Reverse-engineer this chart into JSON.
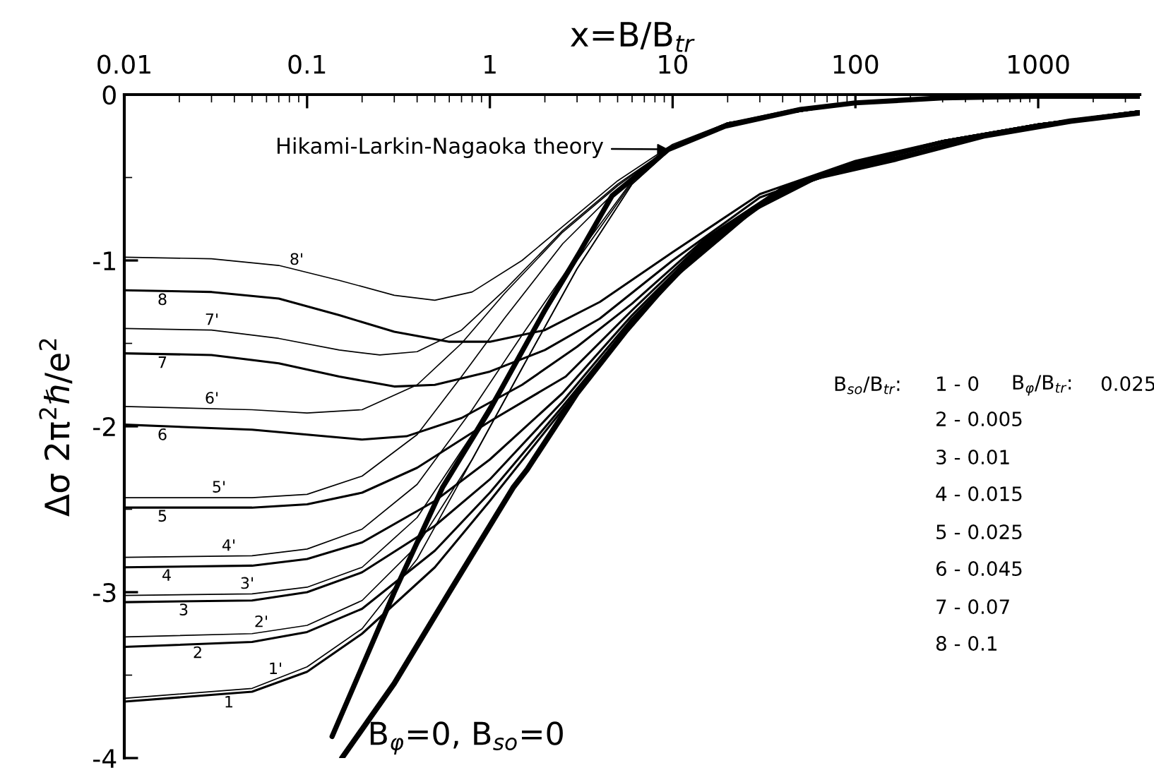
{
  "chart_data": {
    "type": "line",
    "xlabel": "x=B/B$_{tr}$",
    "ylabel": "Δσ 2π$^{2}$ℏ/e$^{2}$",
    "log": "x",
    "grid": false,
    "legend": false,
    "marker": "none",
    "line_style": "solid",
    "xlim": [
      0.01,
      3600
    ],
    "xticks": [
      0.01,
      0.1,
      1,
      10,
      100,
      1000
    ],
    "ylim": [
      -4,
      0
    ],
    "yticks": [
      -4,
      -3,
      -2,
      -1,
      0
    ],
    "series": [
      {
        "color": "#000000",
        "x": [
          0.137,
          0.3,
          0.55,
          1,
          2,
          3.1,
          4.66,
          9.5,
          19.4,
          50,
          100,
          300,
          1000,
          3600
        ],
        "values": [
          -3.87,
          -3.0,
          -2.37,
          -1.9,
          -1.3,
          -0.95,
          -0.61,
          -0.33,
          -0.19,
          -0.09,
          -0.05,
          -0.02,
          -0.01,
          -0.01
        ]
      },
      {
        "name": "B$_{φ}$=0, B$_{so}$=0",
        "color": "#000000",
        "x": [
          0.155,
          0.3,
          0.6,
          1.34,
          1.6,
          3,
          5.6,
          10,
          27.6,
          60,
          164,
          500,
          1500,
          3600
        ],
        "values": [
          -4,
          -3.55,
          -3.0,
          -2.37,
          -2.26,
          -1.8,
          -1.42,
          -1.1,
          -0.69,
          -0.5,
          -0.39,
          -0.25,
          -0.16,
          -0.11
        ]
      },
      {
        "name": "8'",
        "color": "#000000",
        "x": [
          0.01,
          0.03,
          0.07,
          0.15,
          0.3,
          0.5,
          0.8,
          1.5,
          2.6,
          5,
          10,
          20,
          50,
          100,
          200
        ],
        "values": [
          -0.98,
          -0.99,
          -1.03,
          -1.12,
          -1.21,
          -1.24,
          -1.19,
          -1.0,
          -0.78,
          -0.52,
          -0.3,
          -0.17,
          -0.08,
          -0.05,
          -0.03
        ]
      },
      {
        "name": "8",
        "color": "#000000",
        "x": [
          0.01,
          0.03,
          0.07,
          0.15,
          0.3,
          0.6,
          1,
          2,
          4,
          10,
          30,
          100,
          300,
          1000,
          3600
        ],
        "values": [
          -1.18,
          -1.19,
          -1.23,
          -1.33,
          -1.43,
          -1.49,
          -1.49,
          -1.42,
          -1.25,
          -0.95,
          -0.6,
          -0.4,
          -0.28,
          -0.18,
          -0.1
        ]
      },
      {
        "name": "7'",
        "color": "#000000",
        "x": [
          0.01,
          0.03,
          0.07,
          0.15,
          0.25,
          0.4,
          0.7,
          1.2,
          2.5,
          5,
          10,
          20,
          100,
          200
        ],
        "values": [
          -1.41,
          -1.42,
          -1.47,
          -1.54,
          -1.57,
          -1.55,
          -1.42,
          -1.18,
          -0.82,
          -0.54,
          -0.31,
          -0.17,
          -0.05,
          -0.03
        ]
      },
      {
        "name": "7",
        "color": "#000000",
        "x": [
          0.01,
          0.03,
          0.07,
          0.15,
          0.3,
          0.5,
          1,
          2,
          4,
          10,
          30,
          100,
          300,
          1000,
          3600
        ],
        "values": [
          -1.56,
          -1.57,
          -1.62,
          -1.7,
          -1.76,
          -1.75,
          -1.67,
          -1.54,
          -1.35,
          -1.0,
          -0.62,
          -0.41,
          -0.28,
          -0.18,
          -0.1
        ]
      },
      {
        "name": "6'",
        "color": "#000000",
        "x": [
          0.01,
          0.05,
          0.1,
          0.2,
          0.4,
          0.7,
          1.2,
          2.5,
          5,
          10,
          20,
          100,
          200
        ],
        "values": [
          -1.88,
          -1.9,
          -1.92,
          -1.9,
          -1.75,
          -1.5,
          -1.2,
          -0.83,
          -0.55,
          -0.31,
          -0.17,
          -0.05,
          -0.03
        ]
      },
      {
        "name": "6",
        "color": "#000000",
        "x": [
          0.01,
          0.05,
          0.1,
          0.2,
          0.35,
          0.7,
          1.5,
          3,
          6,
          15,
          40,
          100,
          300,
          1000,
          3600
        ],
        "values": [
          -1.99,
          -2.02,
          -2.05,
          -2.08,
          -2.06,
          -1.95,
          -1.75,
          -1.52,
          -1.26,
          -0.87,
          -0.56,
          -0.41,
          -0.28,
          -0.18,
          -0.1
        ]
      },
      {
        "name": "5'",
        "color": "#000000",
        "x": [
          0.01,
          0.05,
          0.1,
          0.2,
          0.4,
          0.7,
          1.2,
          2.5,
          5,
          10,
          20,
          100,
          200
        ],
        "values": [
          -2.43,
          -2.43,
          -2.41,
          -2.3,
          -2.05,
          -1.7,
          -1.35,
          -0.9,
          -0.57,
          -0.32,
          -0.17,
          -0.05,
          -0.03
        ]
      },
      {
        "name": "5",
        "color": "#000000",
        "x": [
          0.01,
          0.05,
          0.1,
          0.2,
          0.4,
          1,
          2.6,
          6,
          15,
          40,
          100,
          300,
          1000,
          3600
        ],
        "values": [
          -2.49,
          -2.49,
          -2.47,
          -2.4,
          -2.25,
          -1.97,
          -1.7,
          -1.3,
          -0.88,
          -0.56,
          -0.42,
          -0.28,
          -0.18,
          -0.1
        ]
      },
      {
        "name": "4'",
        "color": "#000000",
        "x": [
          0.01,
          0.05,
          0.1,
          0.2,
          0.4,
          0.8,
          1.5,
          3,
          6,
          10,
          20,
          100,
          200
        ],
        "values": [
          -2.79,
          -2.78,
          -2.74,
          -2.62,
          -2.35,
          -1.9,
          -1.45,
          -0.97,
          -0.52,
          -0.32,
          -0.17,
          -0.05,
          -0.03
        ]
      },
      {
        "name": "4",
        "color": "#000000",
        "x": [
          0.01,
          0.05,
          0.1,
          0.2,
          0.5,
          1,
          2.5,
          6,
          15,
          40,
          100,
          300,
          1000,
          3600
        ],
        "values": [
          -2.85,
          -2.84,
          -2.8,
          -2.7,
          -2.45,
          -2.2,
          -1.8,
          -1.33,
          -0.89,
          -0.57,
          -0.42,
          -0.28,
          -0.18,
          -0.1
        ]
      },
      {
        "name": "3'",
        "color": "#000000",
        "x": [
          0.01,
          0.05,
          0.1,
          0.2,
          0.4,
          0.8,
          1.5,
          3,
          6,
          10,
          20,
          100,
          200
        ],
        "values": [
          -3.02,
          -3.01,
          -2.97,
          -2.85,
          -2.55,
          -2.05,
          -1.55,
          -1.0,
          -0.53,
          -0.32,
          -0.17,
          -0.05,
          -0.03
        ]
      },
      {
        "name": "3",
        "color": "#000000",
        "x": [
          0.01,
          0.05,
          0.1,
          0.2,
          0.5,
          1,
          2.5,
          6,
          15,
          40,
          100,
          300,
          1000,
          3600
        ],
        "values": [
          -3.06,
          -3.05,
          -3.0,
          -2.88,
          -2.6,
          -2.32,
          -1.85,
          -1.35,
          -0.9,
          -0.57,
          -0.42,
          -0.29,
          -0.18,
          -0.1
        ]
      },
      {
        "name": "2'",
        "color": "#000000",
        "x": [
          0.01,
          0.05,
          0.1,
          0.2,
          0.4,
          0.8,
          1.5,
          3,
          6,
          10,
          20,
          100,
          200
        ],
        "values": [
          -3.27,
          -3.25,
          -3.2,
          -3.05,
          -2.72,
          -2.2,
          -1.65,
          -1.05,
          -0.54,
          -0.32,
          -0.17,
          -0.05,
          -0.03
        ]
      },
      {
        "name": "2",
        "color": "#000000",
        "x": [
          0.01,
          0.05,
          0.1,
          0.2,
          0.5,
          1,
          2.5,
          6,
          15,
          40,
          100,
          300,
          1000,
          3600
        ],
        "values": [
          -3.33,
          -3.3,
          -3.24,
          -3.1,
          -2.75,
          -2.4,
          -1.88,
          -1.37,
          -0.91,
          -0.58,
          -0.43,
          -0.29,
          -0.18,
          -0.1
        ]
      },
      {
        "name": "1'",
        "color": "#000000",
        "x": [
          0.01,
          0.05,
          0.1,
          0.2,
          0.4,
          0.8,
          1.5,
          3,
          6,
          10,
          20,
          100,
          200
        ],
        "values": [
          -3.64,
          -3.58,
          -3.45,
          -3.22,
          -2.8,
          -2.2,
          -1.65,
          -1.05,
          -0.54,
          -0.32,
          -0.17,
          -0.05,
          -0.03
        ]
      },
      {
        "name": "1",
        "color": "#000000",
        "x": [
          0.01,
          0.05,
          0.1,
          0.2,
          0.5,
          1,
          2.5,
          6,
          15,
          40,
          100,
          300,
          1000,
          3600
        ],
        "values": [
          -3.66,
          -3.6,
          -3.48,
          -3.25,
          -2.85,
          -2.45,
          -1.9,
          -1.38,
          -0.92,
          -0.58,
          -0.43,
          -0.29,
          -0.19,
          -0.11
        ]
      }
    ],
    "annotations": [
      "Hikami-Larkin-Nagaoka theory",
      "B$_{so}$/B$_{tr}$:",
      "1 - 0",
      "2 - 0.005",
      "3 - 0.01",
      "4 - 0.015",
      "5 - 0.025",
      "6 - 0.045",
      "7 - 0.07",
      "8 - 0.1",
      "B$_{φ}$/B$_{tr}$:",
      "0.025"
    ]
  }
}
